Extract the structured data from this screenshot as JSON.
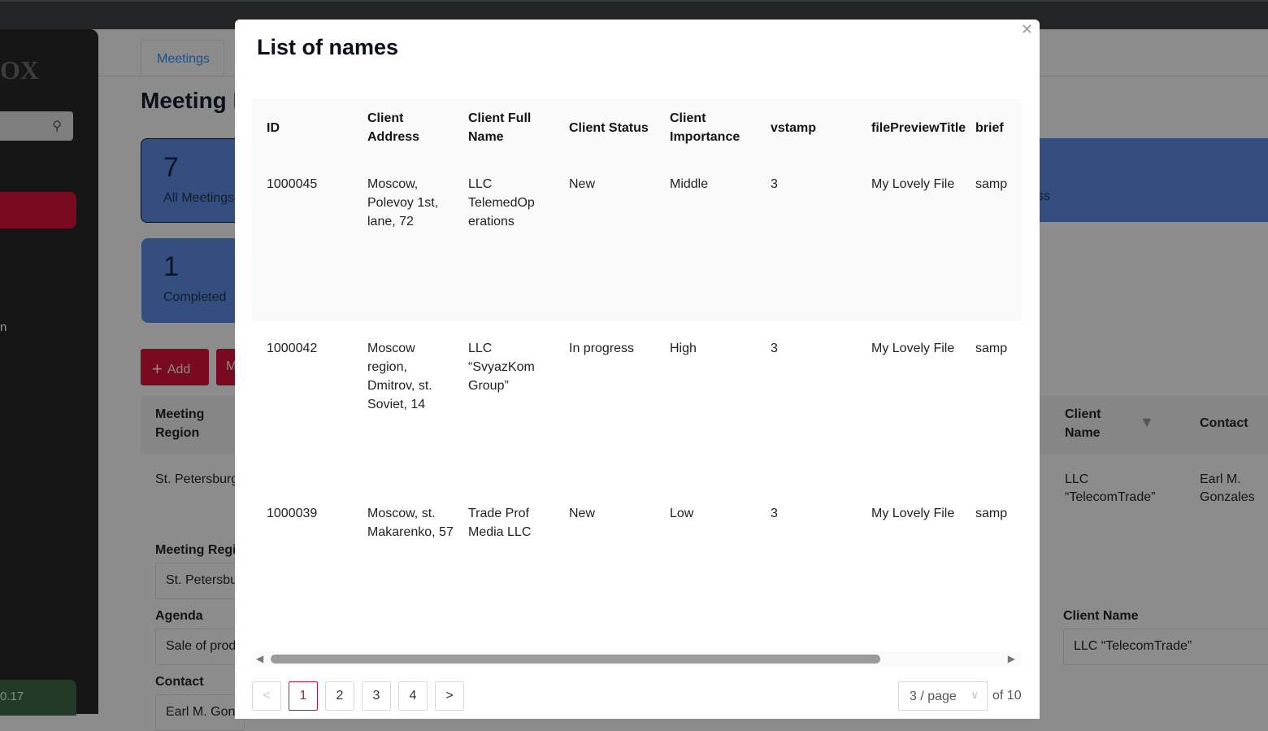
{
  "background": {
    "logo": "OX",
    "sidebar_text": "n",
    "version": "0.17",
    "tab": "Meetings",
    "page_title": "Meeting L",
    "cards": [
      {
        "count": "7",
        "label": "All Meetings"
      },
      {
        "count": "1",
        "label": "Completed"
      }
    ],
    "banner_text": "ss",
    "add_label": "Add",
    "second_btn_label": "M",
    "table": {
      "headers": [
        "Meeting Region",
        "Client Name",
        "Contact"
      ],
      "row": [
        "St. Petersburg",
        "LLC “TelecomTrade”",
        "Earl M. Gonzales"
      ]
    },
    "form": {
      "meeting_region_label": "Meeting Regio",
      "meeting_region_value": "St. Petersbu",
      "agenda_label": "Agenda",
      "agenda_value": "Sale of prod",
      "contact_label": "Contact",
      "contact_value": "Earl M. Gonz",
      "client_name_label": "Client Name",
      "client_name_value": "LLC “TelecomTrade”"
    }
  },
  "modal": {
    "title": "List of names",
    "close_icon": "close-icon",
    "columns": [
      "ID",
      "Client Address",
      "Client Full Name",
      "Client Status",
      "Client Importance",
      "vstamp",
      "filePreviewTitle",
      "brief"
    ],
    "rows": [
      [
        "1000045",
        "Moscow, Polevoy 1st, lane, 72",
        "LLC TelemedOp erations",
        "New",
        "Middle",
        "3",
        "My Lovely File",
        "samp"
      ],
      [
        "1000042",
        "Moscow region, Dmitrov, st. Soviet, 14",
        "LLC “SvyazKom Group”",
        "In progress",
        "High",
        "3",
        "My Lovely File",
        "samp"
      ],
      [
        "1000039",
        "Moscow, st. Makarenko, 57",
        "Trade Prof Media LLC",
        "New",
        "Low",
        "3",
        "My Lovely File",
        "samp"
      ]
    ],
    "pagination": {
      "prev": "<",
      "pages": [
        "1",
        "2",
        "3",
        "4"
      ],
      "current": "1",
      "next": ">",
      "page_size": "3 / page",
      "total": "of 10"
    }
  },
  "colors": {
    "accent": "#c8102e",
    "overlay_blue": "#344f7f",
    "overlay_red": "#7a0a1f"
  }
}
